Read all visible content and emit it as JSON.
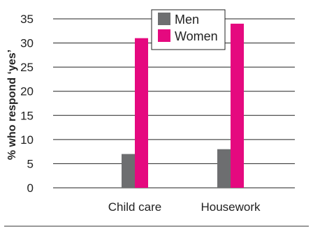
{
  "chart_data": {
    "type": "bar",
    "categories": [
      "Child care",
      "Housework"
    ],
    "series": [
      {
        "name": "Men",
        "values": [
          7,
          8
        ],
        "color": "#6d6e70"
      },
      {
        "name": "Women",
        "values": [
          31,
          34
        ],
        "color": "#e5097f"
      }
    ],
    "ylabel": "% who respond ‘yes’",
    "xlabel": "",
    "ylim": [
      0,
      35
    ],
    "yticks": [
      0,
      5,
      10,
      15,
      20,
      25,
      30,
      35
    ],
    "grid": true,
    "legend_position": "top-center"
  }
}
